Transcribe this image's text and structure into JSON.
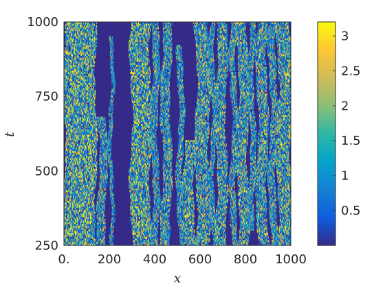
{
  "chart_data": {
    "type": "heatmap",
    "title": "",
    "xlabel": "x",
    "ylabel": "t",
    "xlim": [
      0,
      1000
    ],
    "ylim": [
      250,
      1000
    ],
    "xticks": [
      0,
      200,
      400,
      600,
      800,
      1000
    ],
    "xtick_labels": [
      "0.",
      "200",
      "400",
      "600",
      "800",
      "1000"
    ],
    "yticks": [
      250,
      500,
      750,
      1000
    ],
    "ytick_labels": [
      "250",
      "500",
      "750",
      "1000"
    ],
    "colorbar": {
      "range": [
        0,
        3.2
      ],
      "ticks": [
        0.5,
        1,
        1.5,
        2,
        2.5,
        3
      ],
      "tick_labels": [
        "0.5",
        "1",
        "1.5",
        "2",
        "2.5",
        "3"
      ],
      "colormap": "parula"
    },
    "background_value": 0,
    "background_color": "#352a87",
    "turbulent_bands": [
      {
        "x_start": 0,
        "x_end": 140,
        "t_start": 250,
        "t_end": 1000,
        "intensity": 1.4
      },
      {
        "x_start": 150,
        "x_end": 185,
        "t_start": 250,
        "t_end": 680,
        "intensity": 1.1
      },
      {
        "x_start": 200,
        "x_end": 215,
        "t_start": 250,
        "t_end": 950,
        "intensity": 0.9
      },
      {
        "x_start": 295,
        "x_end": 380,
        "t_start": 250,
        "t_end": 1000,
        "intensity": 1.4
      },
      {
        "x_start": 385,
        "x_end": 415,
        "t_start": 250,
        "t_end": 1000,
        "intensity": 1.0
      },
      {
        "x_start": 430,
        "x_end": 470,
        "t_start": 250,
        "t_end": 1000,
        "intensity": 1.1
      },
      {
        "x_start": 500,
        "x_end": 525,
        "t_start": 250,
        "t_end": 920,
        "intensity": 1.0
      },
      {
        "x_start": 530,
        "x_end": 575,
        "t_start": 250,
        "t_end": 600,
        "intensity": 1.3
      },
      {
        "x_start": 580,
        "x_end": 640,
        "t_start": 250,
        "t_end": 1000,
        "intensity": 1.2
      },
      {
        "x_start": 645,
        "x_end": 665,
        "t_start": 250,
        "t_end": 1000,
        "intensity": 1.0
      },
      {
        "x_start": 670,
        "x_end": 715,
        "t_start": 250,
        "t_end": 1000,
        "intensity": 1.2
      },
      {
        "x_start": 735,
        "x_end": 760,
        "t_start": 250,
        "t_end": 1000,
        "intensity": 1.1
      },
      {
        "x_start": 765,
        "x_end": 810,
        "t_start": 250,
        "t_end": 1000,
        "intensity": 1.2
      },
      {
        "x_start": 815,
        "x_end": 840,
        "t_start": 300,
        "t_end": 1000,
        "intensity": 1.0
      },
      {
        "x_start": 850,
        "x_end": 895,
        "t_start": 250,
        "t_end": 1000,
        "intensity": 1.2
      },
      {
        "x_start": 905,
        "x_end": 935,
        "t_start": 250,
        "t_end": 1000,
        "intensity": 1.0
      },
      {
        "x_start": 940,
        "x_end": 1000,
        "t_start": 250,
        "t_end": 1000,
        "intensity": 1.3
      }
    ]
  }
}
